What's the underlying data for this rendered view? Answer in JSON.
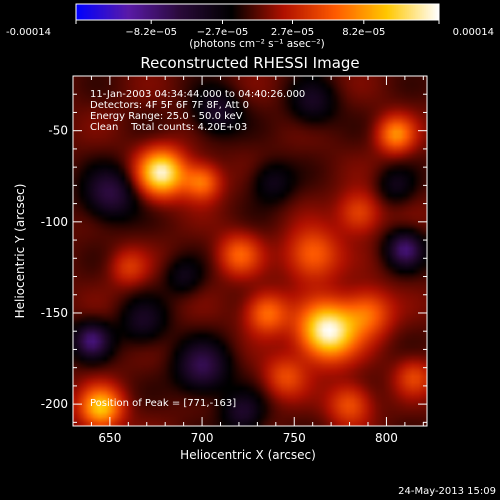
{
  "chart_data": {
    "type": "heatmap",
    "title": "Reconstructed RHESSI Image",
    "xlabel": "Heliocentric X (arcsec)",
    "ylabel": "Heliocentric Y (arcsec)",
    "xlim": [
      630,
      822
    ],
    "ylim": [
      -212,
      -20
    ],
    "xticks": [
      650,
      700,
      750,
      800
    ],
    "yticks": [
      -50,
      -100,
      -150,
      -200
    ],
    "colorbar": {
      "ticks": [
        "-0.00014",
        "−8.2e−05",
        "−2.7e−05",
        "2.7e−05",
        "8.2e−05",
        "0.00014"
      ],
      "tick_values": [
        -0.00014,
        -8.2e-05,
        -2.7e-05,
        2.7e-05,
        8.2e-05,
        0.00014
      ],
      "range": [
        -0.00014,
        0.00014
      ],
      "units_line": "(photons cm⁻² s⁻¹ asec⁻²)",
      "colormap": [
        "#0000ff",
        "#5a1aa8",
        "#2a0a3a",
        "#000000",
        "#b01000",
        "#ff5a00",
        "#ffc800",
        "#ffffff"
      ]
    },
    "annotations": {
      "time": "11-Jan-2003 04:34:44.000 to 04:40:26.000",
      "detectors": "Detectors: 4F 5F 6F 7F 8F, Att 0",
      "energy": "Energy Range: 25.0 - 50.0 keV",
      "clean": "Clean    Total counts: 4.20E+03",
      "peak": "Position of Peak = [771,-163]"
    },
    "peak": [
      771,
      -163
    ],
    "sources": [
      {
        "x": 768,
        "y": -160,
        "amp": 1.0,
        "s": 11
      },
      {
        "x": 678,
        "y": -73,
        "amp": 0.92,
        "s": 9
      },
      {
        "x": 645,
        "y": -202,
        "amp": 0.72,
        "s": 8
      },
      {
        "x": 700,
        "y": -78,
        "amp": 0.52,
        "s": 7
      },
      {
        "x": 760,
        "y": -118,
        "amp": 0.48,
        "s": 10
      },
      {
        "x": 790,
        "y": -150,
        "amp": 0.46,
        "s": 9
      },
      {
        "x": 735,
        "y": -150,
        "amp": 0.5,
        "s": 8
      },
      {
        "x": 720,
        "y": -118,
        "amp": 0.42,
        "s": 8
      },
      {
        "x": 785,
        "y": -95,
        "amp": 0.38,
        "s": 8
      },
      {
        "x": 805,
        "y": -52,
        "amp": 0.55,
        "s": 7
      },
      {
        "x": 745,
        "y": -185,
        "amp": 0.35,
        "s": 8
      },
      {
        "x": 780,
        "y": -200,
        "amp": 0.4,
        "s": 8
      },
      {
        "x": 815,
        "y": -185,
        "amp": 0.32,
        "s": 7
      },
      {
        "x": 660,
        "y": -125,
        "amp": 0.28,
        "s": 7
      },
      {
        "x": 708,
        "y": -40,
        "amp": -0.35,
        "s": 9
      },
      {
        "x": 650,
        "y": -85,
        "amp": -0.45,
        "s": 10
      },
      {
        "x": 640,
        "y": -165,
        "amp": -0.55,
        "s": 7
      },
      {
        "x": 668,
        "y": -155,
        "amp": -0.3,
        "s": 9
      },
      {
        "x": 700,
        "y": -180,
        "amp": -0.48,
        "s": 10
      },
      {
        "x": 690,
        "y": -130,
        "amp": -0.25,
        "s": 7
      },
      {
        "x": 810,
        "y": -115,
        "amp": -0.55,
        "s": 7
      },
      {
        "x": 805,
        "y": -80,
        "amp": -0.25,
        "s": 7
      },
      {
        "x": 760,
        "y": -35,
        "amp": -0.3,
        "s": 9
      },
      {
        "x": 738,
        "y": -78,
        "amp": -0.28,
        "s": 8
      },
      {
        "x": 722,
        "y": -205,
        "amp": -0.35,
        "s": 8
      }
    ]
  },
  "footer_date": "24-May-2013 15:09"
}
